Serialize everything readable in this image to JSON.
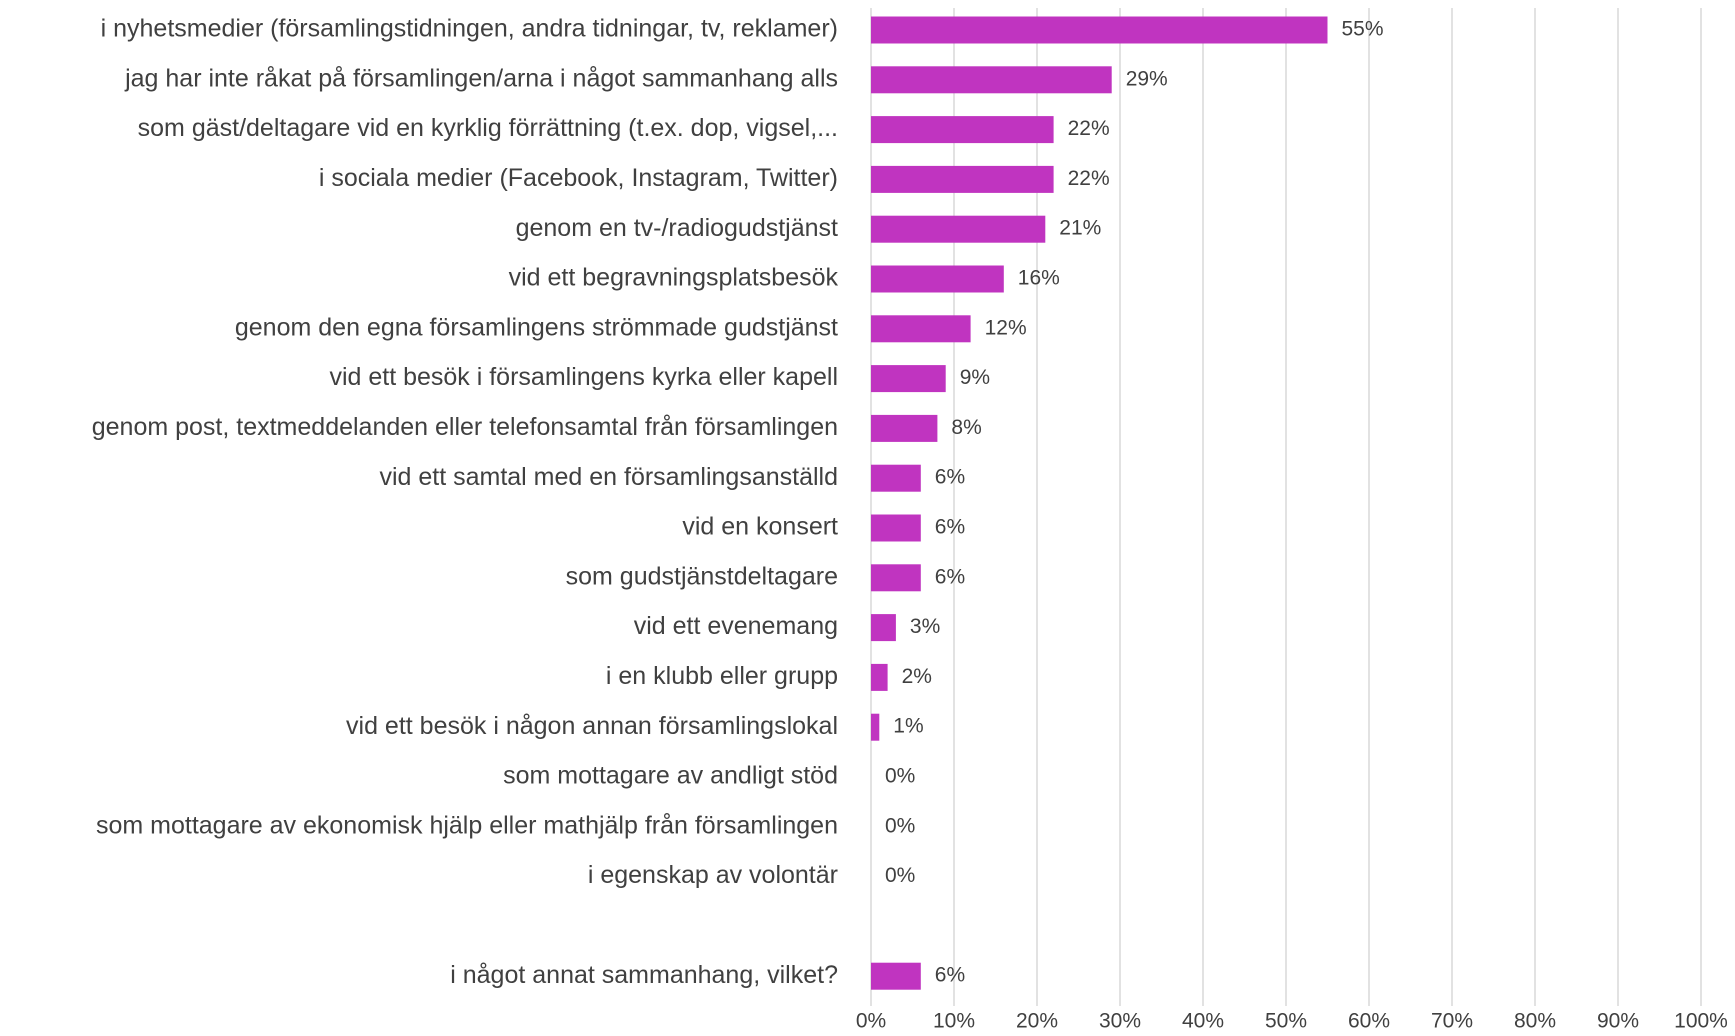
{
  "chart_data": {
    "type": "barh",
    "categories": [
      "i nyhetsmedier (församlingstidningen, andra tidningar, tv, reklamer)",
      "jag har inte råkat på församlingen/arna i något sammanhang alls",
      "som gäst/deltagare vid en kyrklig förrättning (t.ex. dop, vigsel,...",
      "i sociala medier (Facebook, Instagram, Twitter)",
      "genom en tv-/radiogudstjänst",
      "vid ett begravningsplatsbesök",
      "genom den egna församlingens strömmade gudstjänst",
      "vid ett besök i församlingens kyrka eller kapell",
      "genom post, textmeddelanden eller telefonsamtal från församlingen",
      "vid ett samtal med en församlingsanställd",
      "vid en konsert",
      "som gudstjänstdeltagare",
      "vid ett evenemang",
      "i en klubb eller grupp",
      "vid ett besök i någon annan församlingslokal",
      "som mottagare av andligt stöd",
      "som mottagare av ekonomisk hjälp eller mathjälp från församlingen",
      "i egenskap av volontär",
      null,
      "i något annat sammanhang, vilket?"
    ],
    "values": [
      55,
      29,
      22,
      22,
      21,
      16,
      12,
      9,
      8,
      6,
      6,
      6,
      3,
      2,
      1,
      0,
      0,
      0,
      null,
      6
    ],
    "value_labels": [
      "55%",
      "29%",
      "22%",
      "22%",
      "21%",
      "16%",
      "12%",
      "9%",
      "8%",
      "6%",
      "6%",
      "6%",
      "3%",
      "2%",
      "1%",
      "0%",
      "0%",
      "0%",
      null,
      "6%"
    ],
    "color": "#c034c0",
    "xlim": [
      0,
      100
    ],
    "xticks": [
      {
        "value": 0,
        "label": "0%"
      },
      {
        "value": 10,
        "label": "10%"
      },
      {
        "value": 20,
        "label": "20%"
      },
      {
        "value": 30,
        "label": "30%"
      },
      {
        "value": 40,
        "label": "40%"
      },
      {
        "value": 50,
        "label": "50%"
      },
      {
        "value": 60,
        "label": "60%"
      },
      {
        "value": 70,
        "label": "70%"
      },
      {
        "value": 80,
        "label": "80%"
      },
      {
        "value": 90,
        "label": "90%"
      },
      {
        "value": 100,
        "label": "100%"
      }
    ],
    "grid": true
  }
}
